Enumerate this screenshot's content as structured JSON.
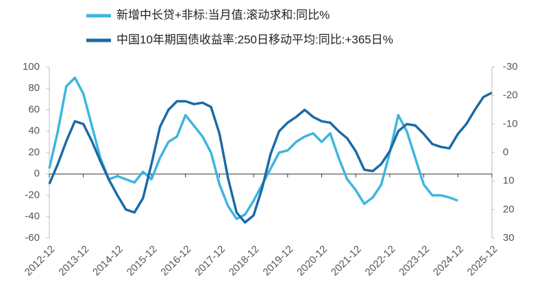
{
  "chart_data": {
    "type": "line",
    "x": [
      "2012-12",
      "2013-03",
      "2013-06",
      "2013-09",
      "2013-12",
      "2014-03",
      "2014-06",
      "2014-09",
      "2014-12",
      "2015-03",
      "2015-06",
      "2015-09",
      "2015-12",
      "2016-03",
      "2016-06",
      "2016-09",
      "2016-12",
      "2017-03",
      "2017-06",
      "2017-09",
      "2017-12",
      "2018-03",
      "2018-06",
      "2018-09",
      "2018-12",
      "2019-03",
      "2019-06",
      "2019-09",
      "2019-12",
      "2020-03",
      "2020-06",
      "2020-09",
      "2020-12",
      "2021-03",
      "2021-06",
      "2021-09",
      "2021-12",
      "2022-03",
      "2022-06",
      "2022-09",
      "2022-12",
      "2023-03",
      "2023-06",
      "2023-09",
      "2023-12",
      "2024-03",
      "2024-06",
      "2024-09",
      "2024-12",
      "2025-03",
      "2025-06",
      "2025-09",
      "2025-12"
    ],
    "series": [
      {
        "name": "新增中长贷+非标:当月值:滚动求和:同比%",
        "color": "#3db5e0",
        "values": [
          5,
          40,
          82,
          90,
          75,
          45,
          15,
          -5,
          -2,
          -5,
          -8,
          2,
          -5,
          15,
          30,
          35,
          55,
          45,
          35,
          20,
          -10,
          -30,
          -42,
          -38,
          -25,
          -10,
          5,
          20,
          22,
          30,
          35,
          38,
          30,
          38,
          15,
          -5,
          -15,
          -28,
          -22,
          -10,
          20,
          55,
          40,
          15,
          -10,
          -20,
          -20,
          -22,
          -25,
          null,
          null,
          null,
          null
        ]
      },
      {
        "name": "中国10年期国债收益率:250日移动平均:同比:+365日%",
        "color": "#1a6aa6",
        "axis": "y2",
        "values": [
          11,
          4,
          -4,
          -11,
          -10,
          -4,
          3,
          9.5,
          15,
          20,
          21,
          16,
          4,
          -9,
          -15,
          -18,
          -18,
          -17,
          -17.5,
          -16,
          -6.5,
          9,
          21,
          24.5,
          22,
          12.5,
          0.5,
          -7.5,
          -10.5,
          -12.5,
          -15,
          -12.5,
          -11,
          -10.5,
          -7.5,
          -5,
          -0.5,
          6,
          6.5,
          4,
          -0.5,
          -7.5,
          -10,
          -9.5,
          -6.5,
          -3,
          -2,
          -1.5,
          -6.5,
          -10,
          -15,
          -19.5,
          -21
        ]
      }
    ],
    "xticks": [
      "2012-12",
      "2013-12",
      "2014-12",
      "2015-12",
      "2016-12",
      "2017-12",
      "2018-12",
      "2019-12",
      "2020-12",
      "2021-12",
      "2022-12",
      "2023-12",
      "2024-12",
      "2025-12"
    ],
    "ylim": [
      -60,
      100
    ],
    "yticks": [
      -60,
      -40,
      -20,
      0,
      20,
      40,
      60,
      80,
      100
    ],
    "y2lim": [
      -30,
      30
    ],
    "y2ticks": [
      -30,
      -20,
      -10,
      0,
      10,
      20,
      30
    ],
    "y2_reversed": true,
    "legend": "top-left"
  }
}
